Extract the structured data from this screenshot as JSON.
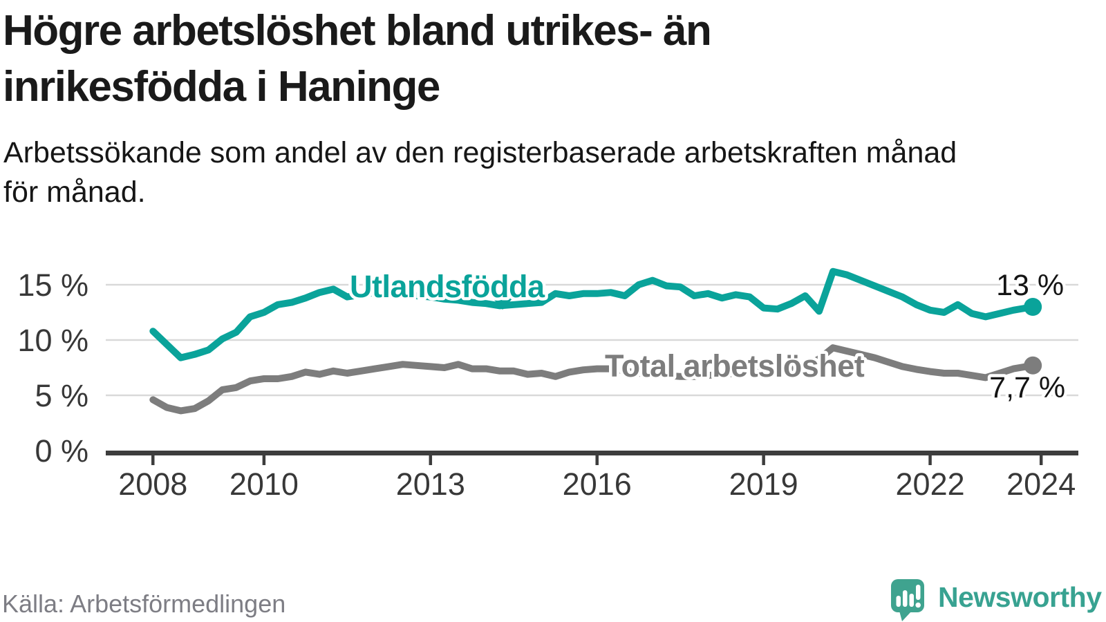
{
  "title": {
    "line1": "Högre arbetslöshet bland utrikes- än",
    "line2": "inrikesfödda i Haninge"
  },
  "subtitle": {
    "line1": "Arbetssökande som andel av den registerbaserade arbetskraften månad",
    "line2": "för månad."
  },
  "source_note": "Källa: Arbetsförmedlingen",
  "brand": {
    "name": "Newsworthy",
    "logo_color": "#3fa38f",
    "text_color": "#38a291"
  },
  "colors": {
    "foreign_born_line": "#0aa39a",
    "total_line": "#7d7d7d",
    "gridline": "#d9d9d9",
    "axis": "#3d3d3d",
    "tick_label": "#383838",
    "value_label": "#141414"
  },
  "chart_data": {
    "type": "line",
    "unit": "%",
    "grid": true,
    "xlim": [
      2007.15,
      2024.67
    ],
    "ylim": [
      0,
      16.5
    ],
    "x_ticks": [
      {
        "value": 2008,
        "label": "2008"
      },
      {
        "value": 2010,
        "label": "2010"
      },
      {
        "value": 2013,
        "label": "2013"
      },
      {
        "value": 2016,
        "label": "2016"
      },
      {
        "value": 2019,
        "label": "2019"
      },
      {
        "value": 2022,
        "label": "2022"
      },
      {
        "value": 2024,
        "label": "2024"
      }
    ],
    "y_ticks": [
      {
        "value": 0,
        "label": "0 %"
      },
      {
        "value": 5,
        "label": "5 %"
      },
      {
        "value": 10,
        "label": "10 %"
      },
      {
        "value": 15,
        "label": "15 %"
      }
    ],
    "series": [
      {
        "name": "Utlandsfödda",
        "color": "#0aa39a",
        "end_label": "13 %",
        "pointer_x": 2014.3,
        "points": [
          [
            2008.0,
            10.8
          ],
          [
            2008.25,
            9.6
          ],
          [
            2008.5,
            8.4
          ],
          [
            2008.75,
            8.7
          ],
          [
            2009.0,
            9.1
          ],
          [
            2009.25,
            10.1
          ],
          [
            2009.5,
            10.7
          ],
          [
            2009.75,
            12.1
          ],
          [
            2010.0,
            12.5
          ],
          [
            2010.25,
            13.2
          ],
          [
            2010.5,
            13.4
          ],
          [
            2010.75,
            13.8
          ],
          [
            2011.0,
            14.3
          ],
          [
            2011.25,
            14.6
          ],
          [
            2011.5,
            13.9
          ],
          [
            2011.75,
            14.1
          ],
          [
            2012.0,
            14.3
          ],
          [
            2012.25,
            14.2
          ],
          [
            2012.5,
            14.1
          ],
          [
            2012.75,
            14.0
          ],
          [
            2013.0,
            13.9
          ],
          [
            2013.25,
            13.7
          ],
          [
            2013.5,
            13.6
          ],
          [
            2013.75,
            13.4
          ],
          [
            2014.0,
            13.3
          ],
          [
            2014.25,
            13.1
          ],
          [
            2014.5,
            13.2
          ],
          [
            2014.75,
            13.3
          ],
          [
            2015.0,
            13.4
          ],
          [
            2015.25,
            14.2
          ],
          [
            2015.5,
            14.0
          ],
          [
            2015.75,
            14.2
          ],
          [
            2016.0,
            14.2
          ],
          [
            2016.25,
            14.3
          ],
          [
            2016.5,
            14.0
          ],
          [
            2016.75,
            15.0
          ],
          [
            2017.0,
            15.4
          ],
          [
            2017.25,
            14.9
          ],
          [
            2017.5,
            14.8
          ],
          [
            2017.75,
            14.0
          ],
          [
            2018.0,
            14.2
          ],
          [
            2018.25,
            13.8
          ],
          [
            2018.5,
            14.1
          ],
          [
            2018.75,
            13.9
          ],
          [
            2019.0,
            12.9
          ],
          [
            2019.25,
            12.8
          ],
          [
            2019.5,
            13.3
          ],
          [
            2019.75,
            14.0
          ],
          [
            2020.0,
            12.6
          ],
          [
            2020.25,
            16.2
          ],
          [
            2020.5,
            15.9
          ],
          [
            2020.75,
            15.4
          ],
          [
            2021.0,
            14.9
          ],
          [
            2021.25,
            14.4
          ],
          [
            2021.5,
            13.9
          ],
          [
            2021.75,
            13.2
          ],
          [
            2022.0,
            12.7
          ],
          [
            2022.25,
            12.5
          ],
          [
            2022.5,
            13.2
          ],
          [
            2022.75,
            12.4
          ],
          [
            2023.0,
            12.1
          ],
          [
            2023.25,
            12.4
          ],
          [
            2023.5,
            12.7
          ],
          [
            2023.85,
            13.0
          ]
        ]
      },
      {
        "name": "Total arbetslöshet",
        "color": "#7d7d7d",
        "end_label": "7,7 %",
        "points": [
          [
            2008.0,
            4.6
          ],
          [
            2008.25,
            3.9
          ],
          [
            2008.5,
            3.6
          ],
          [
            2008.75,
            3.8
          ],
          [
            2009.0,
            4.5
          ],
          [
            2009.25,
            5.5
          ],
          [
            2009.5,
            5.7
          ],
          [
            2009.75,
            6.3
          ],
          [
            2010.0,
            6.5
          ],
          [
            2010.25,
            6.5
          ],
          [
            2010.5,
            6.7
          ],
          [
            2010.75,
            7.1
          ],
          [
            2011.0,
            6.9
          ],
          [
            2011.25,
            7.2
          ],
          [
            2011.5,
            7.0
          ],
          [
            2011.75,
            7.2
          ],
          [
            2012.0,
            7.4
          ],
          [
            2012.25,
            7.6
          ],
          [
            2012.5,
            7.8
          ],
          [
            2012.75,
            7.7
          ],
          [
            2013.0,
            7.6
          ],
          [
            2013.25,
            7.5
          ],
          [
            2013.5,
            7.8
          ],
          [
            2013.75,
            7.4
          ],
          [
            2014.0,
            7.4
          ],
          [
            2014.25,
            7.2
          ],
          [
            2014.5,
            7.2
          ],
          [
            2014.75,
            6.9
          ],
          [
            2015.0,
            7.0
          ],
          [
            2015.25,
            6.7
          ],
          [
            2015.5,
            7.1
          ],
          [
            2015.75,
            7.3
          ],
          [
            2016.0,
            7.4
          ],
          [
            2016.25,
            7.4
          ],
          [
            2016.5,
            7.2
          ],
          [
            2016.75,
            7.0
          ],
          [
            2017.0,
            6.9
          ],
          [
            2017.25,
            6.8
          ],
          [
            2017.5,
            6.7
          ],
          [
            2017.75,
            6.7
          ],
          [
            2018.0,
            6.8
          ],
          [
            2018.25,
            6.9
          ],
          [
            2018.5,
            7.0
          ],
          [
            2018.75,
            7.1
          ],
          [
            2019.0,
            7.2
          ],
          [
            2019.25,
            7.3
          ],
          [
            2019.5,
            7.4
          ],
          [
            2019.75,
            7.6
          ],
          [
            2020.0,
            8.3
          ],
          [
            2020.25,
            9.3
          ],
          [
            2020.5,
            9.0
          ],
          [
            2020.75,
            8.7
          ],
          [
            2021.0,
            8.4
          ],
          [
            2021.25,
            8.0
          ],
          [
            2021.5,
            7.6
          ],
          [
            2021.75,
            7.35
          ],
          [
            2022.0,
            7.15
          ],
          [
            2022.25,
            7.0
          ],
          [
            2022.5,
            7.0
          ],
          [
            2022.75,
            6.8
          ],
          [
            2023.0,
            6.6
          ],
          [
            2023.25,
            7.0
          ],
          [
            2023.5,
            7.4
          ],
          [
            2023.85,
            7.7
          ]
        ]
      }
    ]
  }
}
